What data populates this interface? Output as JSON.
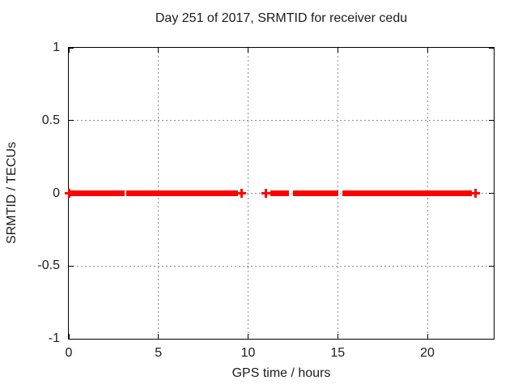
{
  "chart_data": {
    "type": "scatter",
    "title": "Day 251 of 2017, SRMTID for receiver cedu",
    "xlabel": "GPS time / hours",
    "ylabel": "SRMTID / TECUs",
    "xlim": [
      0,
      23.7
    ],
    "ylim": [
      -1,
      1
    ],
    "xticks": [
      {
        "v": 0,
        "label": "0"
      },
      {
        "v": 5,
        "label": "5"
      },
      {
        "v": 10,
        "label": "10"
      },
      {
        "v": 15,
        "label": "15"
      },
      {
        "v": 20,
        "label": "20"
      }
    ],
    "yticks": [
      {
        "v": 1,
        "label": "1"
      },
      {
        "v": 0.5,
        "label": "0.5"
      },
      {
        "v": 0,
        "label": "0"
      },
      {
        "v": -0.5,
        "label": "-0.5"
      },
      {
        "v": -1,
        "label": "-1"
      }
    ],
    "grid": true,
    "legend": "none",
    "background_color": "#ffffff",
    "axis_color": "#000000",
    "grid_color": "#909090",
    "series": [
      {
        "name": "SRMTID",
        "color": "#ff0000",
        "marker": "plus",
        "baseline_y": 0,
        "segments_hours": [
          [
            0,
            3.1
          ],
          [
            3.2,
            9.45
          ],
          [
            11.22,
            12.28
          ],
          [
            12.49,
            15.05
          ],
          [
            15.28,
            22.5
          ]
        ],
        "isolated_points_hours": [
          0,
          9.65,
          11.0,
          22.7
        ]
      }
    ]
  }
}
